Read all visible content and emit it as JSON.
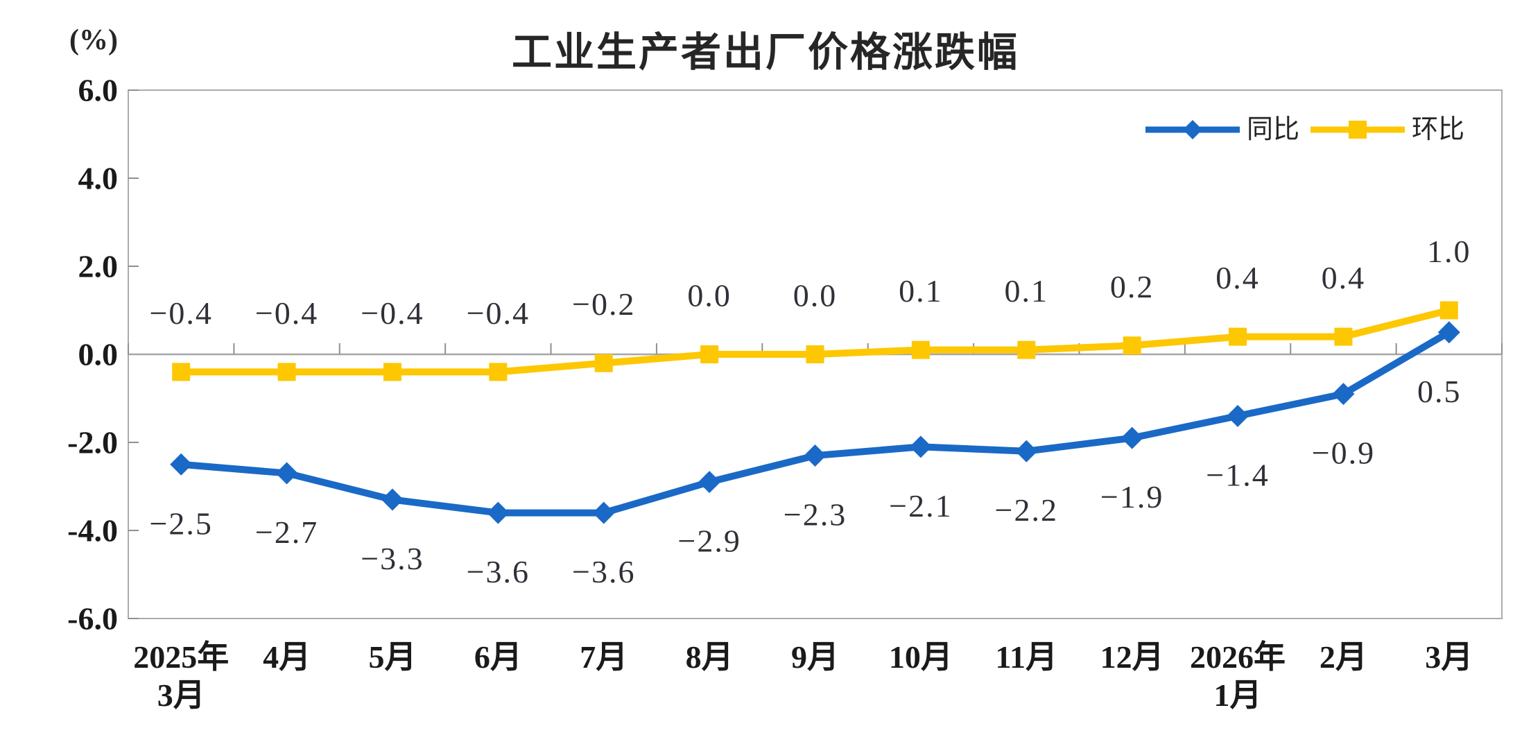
{
  "page": {
    "background": "#ffffff"
  },
  "chart_data": {
    "type": "line",
    "title": "工业生产者出厂价格涨跌幅",
    "unit_label": "(%)",
    "categories": [
      "2025年\n3月",
      "4月",
      "5月",
      "6月",
      "7月",
      "8月",
      "9月",
      "10月",
      "11月",
      "12月",
      "2026年\n1月",
      "2月",
      "3月"
    ],
    "series": [
      {
        "name": "同比",
        "color": "#1A69C6",
        "marker": "diamond",
        "label_position": "below",
        "values": [
          -2.5,
          -2.7,
          -3.3,
          -3.6,
          -3.6,
          -2.9,
          -2.3,
          -2.1,
          -2.2,
          -1.9,
          -1.4,
          -0.9,
          0.5
        ],
        "labels": [
          "−2.5",
          "−2.7",
          "−3.3",
          "−3.6",
          "−3.6",
          "−2.9",
          "−2.3",
          "−2.1",
          "−2.2",
          "−1.9",
          "−1.4",
          "−0.9",
          "0.5"
        ]
      },
      {
        "name": "环比",
        "color": "#FDC702",
        "marker": "square",
        "label_position": "above",
        "values": [
          -0.4,
          -0.4,
          -0.4,
          -0.4,
          -0.2,
          0.0,
          0.0,
          0.1,
          0.1,
          0.2,
          0.4,
          0.4,
          1.0
        ],
        "labels": [
          "−0.4",
          "−0.4",
          "−0.4",
          "−0.4",
          "−0.2",
          "0.0",
          "0.0",
          "0.1",
          "0.1",
          "0.2",
          "0.4",
          "0.4",
          "1.0"
        ]
      }
    ],
    "y_axis": {
      "min": -6,
      "max": 6,
      "step": 2,
      "tick_labels": [
        "6.0",
        "4.0",
        "2.0",
        "0.0",
        "-2.0",
        "-4.0",
        "-6.0"
      ]
    },
    "legend": {
      "position": "top-right",
      "items": [
        "同比",
        "环比"
      ]
    },
    "grid": false,
    "frame_color": "#ABABAB",
    "zero_line_color": "#A6A6A6",
    "tick_color": "#8F8F8F"
  }
}
